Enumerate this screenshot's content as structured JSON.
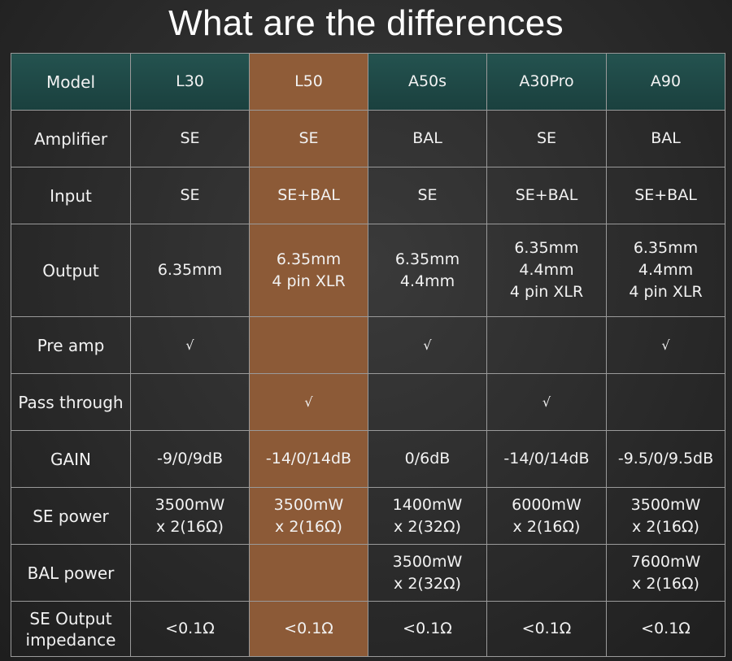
{
  "title": "What are the differences",
  "colors": {
    "header_bg": "#1f4a48",
    "highlight_bg": "#8c5a37",
    "background": "#2b2b2b",
    "border": "#9a9a9a",
    "text": "#f2f2f2"
  },
  "table": {
    "header": [
      "Model",
      "L30",
      "L50",
      "A50s",
      "A30Pro",
      "A90"
    ],
    "highlight_column": "L50",
    "rows": [
      {
        "label": [
          "Amplifier"
        ],
        "cells": [
          [
            "SE"
          ],
          [
            "SE"
          ],
          [
            "BAL"
          ],
          [
            "SE"
          ],
          [
            "BAL"
          ]
        ]
      },
      {
        "label": [
          "Input"
        ],
        "cells": [
          [
            "SE"
          ],
          [
            "SE+BAL"
          ],
          [
            "SE"
          ],
          [
            "SE+BAL"
          ],
          [
            "SE+BAL"
          ]
        ]
      },
      {
        "label": [
          "Output"
        ],
        "cells": [
          [
            "6.35mm"
          ],
          [
            "6.35mm",
            "4 pin XLR"
          ],
          [
            "6.35mm",
            "4.4mm"
          ],
          [
            "6.35mm",
            "4.4mm",
            "4 pin XLR"
          ],
          [
            "6.35mm",
            "4.4mm",
            "4 pin XLR"
          ]
        ]
      },
      {
        "label": [
          "Pre amp"
        ],
        "cells": [
          [
            "√"
          ],
          [],
          [
            "√"
          ],
          [],
          [
            "√"
          ]
        ]
      },
      {
        "label": [
          "Pass through"
        ],
        "cells": [
          [],
          [
            "√"
          ],
          [],
          [
            "√"
          ],
          []
        ]
      },
      {
        "label": [
          "GAIN"
        ],
        "cells": [
          [
            "-9/0/9dB"
          ],
          [
            "-14/0/14dB"
          ],
          [
            "0/6dB"
          ],
          [
            "-14/0/14dB"
          ],
          [
            "-9.5/0/9.5dB"
          ]
        ]
      },
      {
        "label": [
          "SE power"
        ],
        "cells": [
          [
            "3500mW",
            "x 2(16Ω)"
          ],
          [
            "3500mW",
            "x 2(16Ω)"
          ],
          [
            "1400mW",
            "x 2(32Ω)"
          ],
          [
            "6000mW",
            "x 2(16Ω)"
          ],
          [
            "3500mW",
            "x 2(16Ω)"
          ]
        ]
      },
      {
        "label": [
          "BAL power"
        ],
        "cells": [
          [],
          [],
          [
            "3500mW",
            "x 2(32Ω)"
          ],
          [],
          [
            "7600mW",
            "x 2(16Ω)"
          ]
        ]
      },
      {
        "label": [
          "SE Output",
          "impedance"
        ],
        "cells": [
          [
            "<0.1Ω"
          ],
          [
            "<0.1Ω"
          ],
          [
            "<0.1Ω"
          ],
          [
            "<0.1Ω"
          ],
          [
            "<0.1Ω"
          ]
        ]
      }
    ]
  }
}
